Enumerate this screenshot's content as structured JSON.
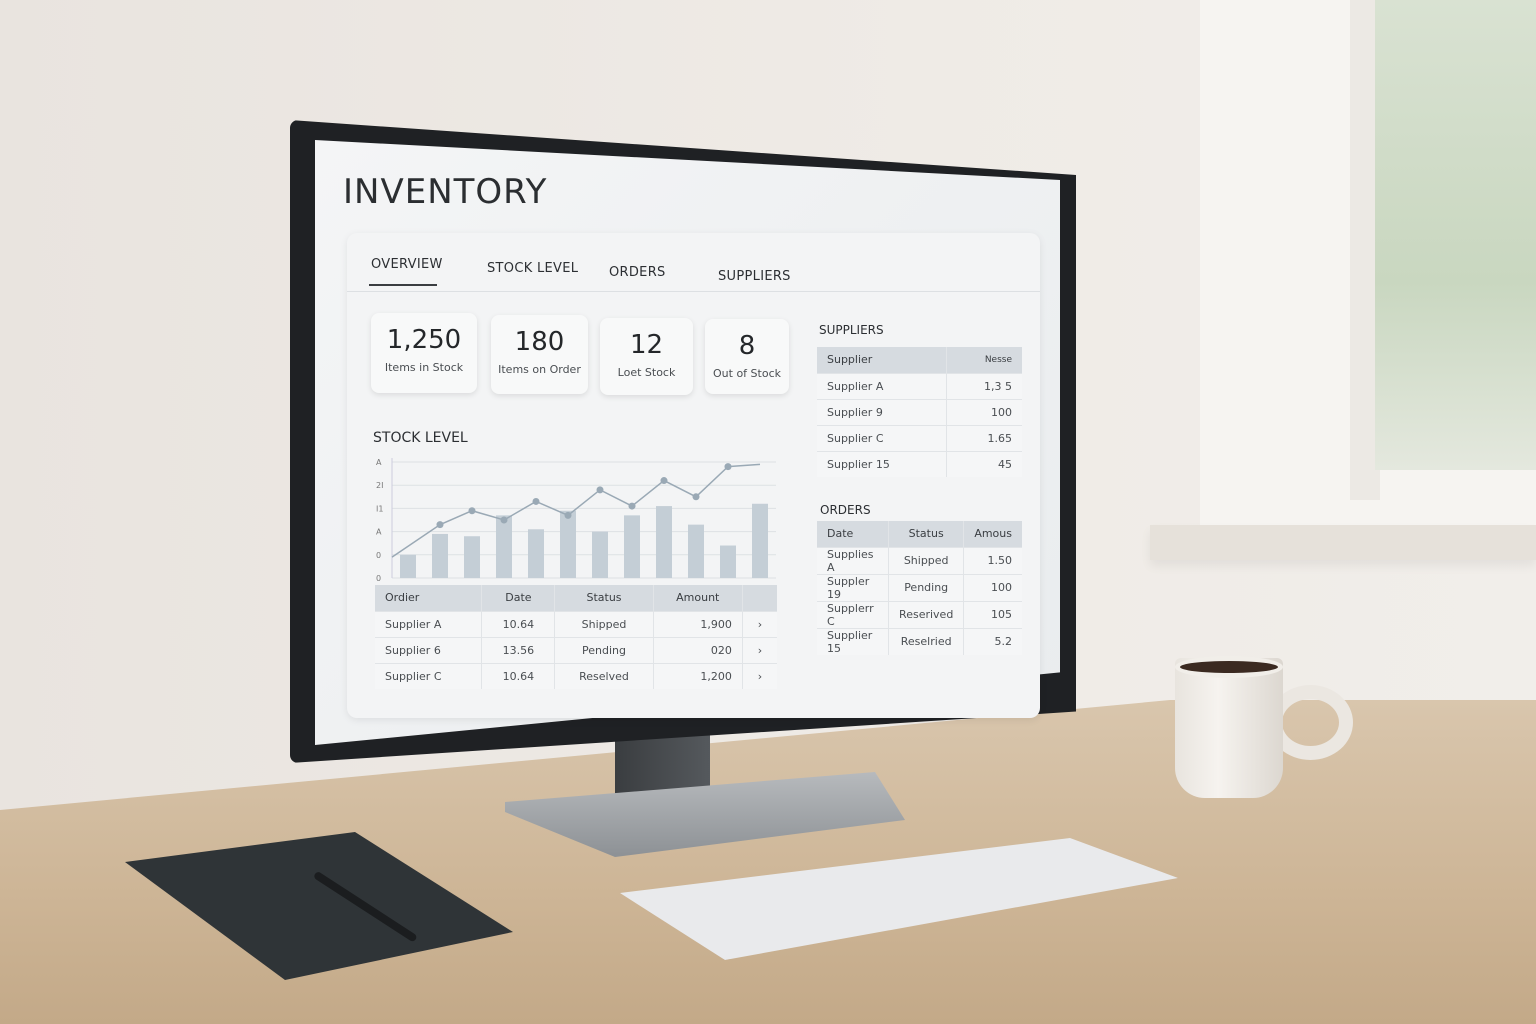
{
  "app": {
    "title": "INVENTORY"
  },
  "tabs": [
    {
      "label": "OVERVIEW",
      "active": true
    },
    {
      "label": "STOCK LEVEL"
    },
    {
      "label": "ORDERS"
    },
    {
      "label": "SUPPLIERS"
    }
  ],
  "kpis": [
    {
      "value": "1,250",
      "label": "Items in Stock"
    },
    {
      "value": "180",
      "label": "Items on Order"
    },
    {
      "value": "12",
      "label": "Loet Stock"
    },
    {
      "value": "8",
      "label": "Out of Stock"
    }
  ],
  "stock_section": {
    "title": "STOCK LEVEL"
  },
  "chart_data": {
    "type": "bar",
    "title": "STOCK LEVEL",
    "ytick_labels": [
      "A",
      "2I",
      "I1",
      "A",
      "0",
      "0"
    ],
    "ylim": [
      0,
      5
    ],
    "grid": true,
    "bars": [
      1.0,
      1.9,
      1.8,
      2.7,
      2.1,
      2.9,
      2.0,
      2.7,
      3.1,
      2.3,
      1.4,
      3.2
    ],
    "line": [
      0.9,
      2.3,
      2.9,
      2.5,
      3.3,
      2.7,
      3.8,
      3.1,
      4.2,
      3.5,
      4.8,
      4.9
    ],
    "colors": {
      "bar": "#c4ced6",
      "line": "#9aa9b5"
    }
  },
  "orders_table": {
    "columns": [
      "Ordier",
      "Date",
      "Status",
      "Amount"
    ],
    "rows": [
      [
        "Supplier A",
        "10.64",
        "Shipped",
        "1,900"
      ],
      [
        "Supplier 6",
        "13.56",
        "Pending",
        "020"
      ],
      [
        "Supplier C",
        "10.64",
        "Reselved",
        "1,200"
      ]
    ]
  },
  "suppliers": {
    "title": "SUPPLIERS",
    "columns": [
      "Supplier",
      "Nesse"
    ],
    "rows": [
      [
        "Supplier A",
        "1,3 5"
      ],
      [
        "Supplier 9",
        "100"
      ],
      [
        "Supplier C",
        "1.65"
      ],
      [
        "Supplier 15",
        "45"
      ]
    ]
  },
  "orders": {
    "title": "ORDERS",
    "columns": [
      "Date",
      "Status",
      "Amous"
    ],
    "rows": [
      [
        "Supplies A",
        "Shipped",
        "1.50"
      ],
      [
        "Suppler 19",
        "Pending",
        "100"
      ],
      [
        "Supplerr C",
        "Reserived",
        "105"
      ],
      [
        "Supplier 15",
        "Reselried",
        "5.2"
      ]
    ]
  }
}
